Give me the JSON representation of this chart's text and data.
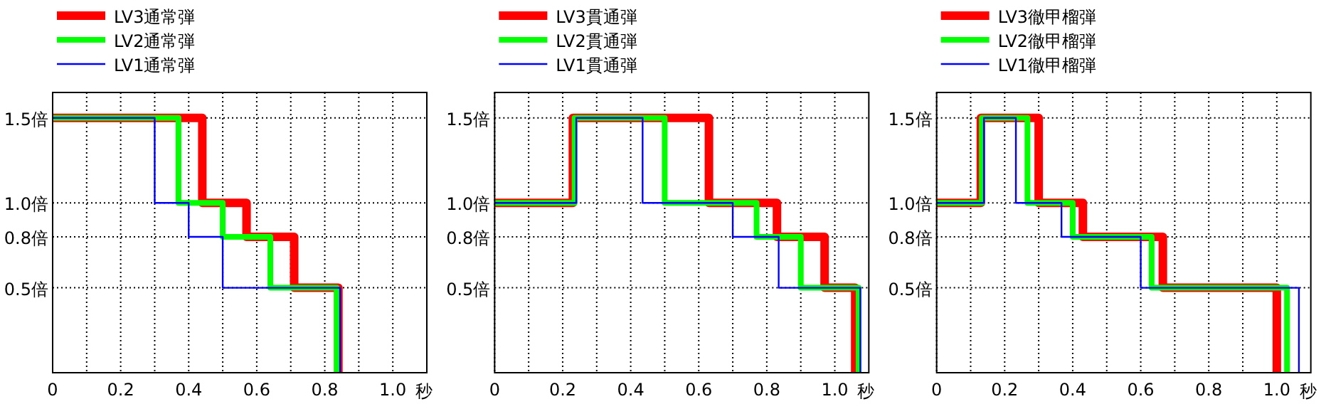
{
  "chart_data": [
    {
      "type": "step",
      "xlim": [
        0,
        1.1
      ],
      "ylim": [
        0,
        1.65
      ],
      "xlabel": "秒",
      "grid": true,
      "legend": "top",
      "xticks": [
        {
          "value": 0,
          "label": "0"
        },
        {
          "value": 0.1,
          "label": null
        },
        0.2,
        {
          "value": 0.3,
          "label": null
        },
        0.4,
        {
          "value": 0.5,
          "label": null
        },
        0.6,
        {
          "value": 0.7,
          "label": null
        },
        0.8,
        {
          "value": 0.9,
          "label": null
        },
        {
          "value": 1,
          "label": "1.0"
        }
      ],
      "yticks": [
        {
          "value": 0.5,
          "label": "0.5倍"
        },
        {
          "value": 0.8,
          "label": "0.8倍"
        },
        {
          "value": 1,
          "label": "1.0倍"
        },
        {
          "value": 1.5,
          "label": "1.5倍"
        }
      ],
      "series": [
        {
          "name": "LV3通常弾",
          "color": "#ff0000",
          "x": [
            0,
            0.44,
            0.57,
            0.71,
            0.84
          ],
          "values": [
            1.5,
            1.0,
            0.8,
            0.5,
            0
          ]
        },
        {
          "name": "LV2通常弾",
          "color": "#00ff00",
          "x": [
            0,
            0.37,
            0.5,
            0.64,
            0.835
          ],
          "values": [
            1.5,
            1.0,
            0.8,
            0.5,
            0
          ]
        },
        {
          "name": "LV1通常弾",
          "color": "#0000ff",
          "x": [
            0,
            0.3,
            0.4,
            0.5,
            0.845
          ],
          "values": [
            1.5,
            1.0,
            0.8,
            0.5,
            0
          ]
        }
      ]
    },
    {
      "type": "step",
      "xlim": [
        0,
        1.1
      ],
      "ylim": [
        0,
        1.65
      ],
      "xlabel": "秒",
      "grid": true,
      "legend": "top",
      "xticks": [
        {
          "value": 0,
          "label": "0"
        },
        {
          "value": 0.1,
          "label": null
        },
        0.2,
        {
          "value": 0.3,
          "label": null
        },
        0.4,
        {
          "value": 0.5,
          "label": null
        },
        0.6,
        {
          "value": 0.7,
          "label": null
        },
        0.8,
        {
          "value": 0.9,
          "label": null
        },
        {
          "value": 1,
          "label": "1.0"
        }
      ],
      "yticks": [
        {
          "value": 0.5,
          "label": "0.5倍"
        },
        {
          "value": 0.8,
          "label": "0.8倍"
        },
        {
          "value": 1,
          "label": "1.0倍"
        },
        {
          "value": 1.5,
          "label": "1.5倍"
        }
      ],
      "series": [
        {
          "name": "LV3貫通弾",
          "color": "#ff0000",
          "x": [
            0,
            0.23,
            0.63,
            0.83,
            0.97,
            1.06
          ],
          "values": [
            1.0,
            1.5,
            1.0,
            0.8,
            0.5,
            0
          ]
        },
        {
          "name": "LV2貫通弾",
          "color": "#00ff00",
          "x": [
            0,
            0.235,
            0.5,
            0.77,
            0.9,
            1.07
          ],
          "values": [
            1.0,
            1.5,
            1.0,
            0.8,
            0.5,
            0
          ]
        },
        {
          "name": "LV1貫通弾",
          "color": "#0000ff",
          "x": [
            0,
            0.24,
            0.435,
            0.7,
            0.835,
            1.075
          ],
          "values": [
            1.0,
            1.5,
            1.0,
            0.8,
            0.5,
            0
          ]
        }
      ]
    },
    {
      "type": "step",
      "xlim": [
        0,
        1.1
      ],
      "ylim": [
        0,
        1.65
      ],
      "xlabel": "秒",
      "grid": true,
      "legend": "top",
      "xticks": [
        {
          "value": 0,
          "label": "0"
        },
        {
          "value": 0.1,
          "label": null
        },
        0.2,
        {
          "value": 0.3,
          "label": null
        },
        0.4,
        {
          "value": 0.5,
          "label": null
        },
        0.6,
        {
          "value": 0.7,
          "label": null
        },
        0.8,
        {
          "value": 0.9,
          "label": null
        },
        {
          "value": 1,
          "label": "1.0"
        }
      ],
      "yticks": [
        {
          "value": 0.5,
          "label": "0.5倍"
        },
        {
          "value": 0.8,
          "label": "0.8倍"
        },
        {
          "value": 1,
          "label": "1.0倍"
        },
        {
          "value": 1.5,
          "label": "1.5倍"
        }
      ],
      "series": [
        {
          "name": "LV3徹甲榴弾",
          "color": "#ff0000",
          "x": [
            0,
            0.13,
            0.3,
            0.43,
            0.665,
            1.0
          ],
          "values": [
            1.0,
            1.5,
            1.0,
            0.8,
            0.5,
            0
          ]
        },
        {
          "name": "LV2徹甲榴弾",
          "color": "#00ff00",
          "x": [
            0,
            0.133,
            0.267,
            0.4,
            0.632,
            1.03
          ],
          "values": [
            1.0,
            1.5,
            1.0,
            0.8,
            0.5,
            0
          ]
        },
        {
          "name": "LV1徹甲榴弾",
          "color": "#0000ff",
          "x": [
            0,
            0.139,
            0.233,
            0.367,
            0.6,
            1.065
          ],
          "values": [
            1.0,
            1.5,
            1.0,
            0.8,
            0.5,
            0
          ]
        }
      ]
    }
  ]
}
